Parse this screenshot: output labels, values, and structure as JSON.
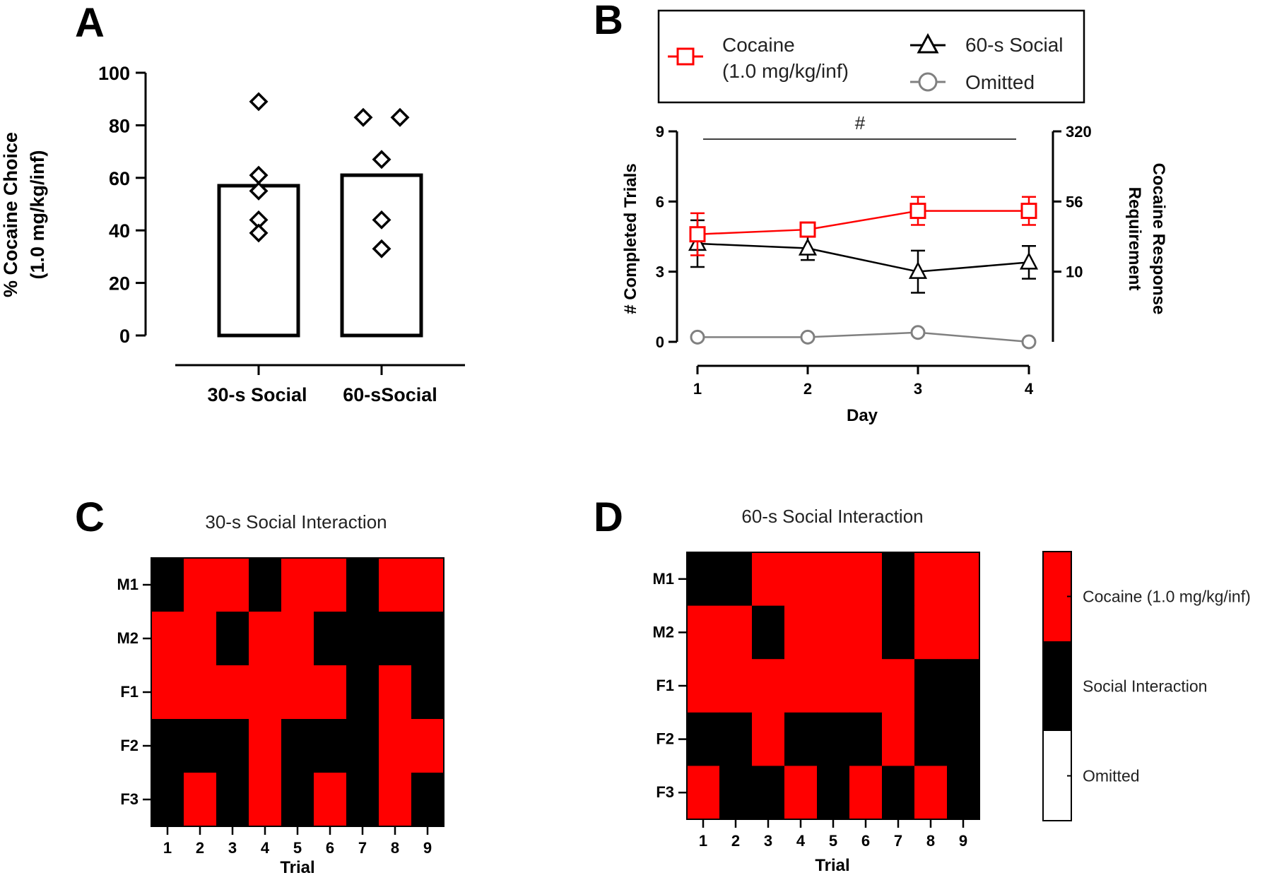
{
  "panels": {
    "a": "A",
    "b": "B",
    "c": "C",
    "d": "D"
  },
  "colors": {
    "cocaine": "#ff0000",
    "social": "#000000",
    "omitted": "#808080",
    "omitted_cell": "#ffffff"
  },
  "chart_data": [
    {
      "id": "A",
      "type": "bar",
      "categories": [
        "30-s Social",
        "60-sSocial"
      ],
      "values": [
        57,
        61
      ],
      "points": [
        [
          89,
          61,
          55,
          44,
          39
        ],
        [
          83,
          83,
          67,
          44,
          33
        ]
      ],
      "ylabel_line1": "% Cocaine Choice",
      "ylabel_line2": "(1.0 mg/kg/inf)",
      "ylim": [
        0,
        100
      ],
      "yticks": [
        0,
        20,
        40,
        60,
        80,
        100
      ]
    },
    {
      "id": "B",
      "type": "line",
      "x": [
        1,
        2,
        3,
        4
      ],
      "xticks": [
        "1",
        "2",
        "3",
        "4"
      ],
      "xlabel": "Day",
      "ylabel": "# Completed Trials",
      "ylim": [
        0,
        9
      ],
      "yticks": [
        "0",
        "3",
        "6",
        "9"
      ],
      "y2label_line1": "Cocaine Response",
      "y2label_line2": "Requirement",
      "y2ticks": [
        "10",
        "56",
        "320"
      ],
      "significance": "#",
      "series": [
        {
          "name_line1": "Cocaine",
          "name_line2": "(1.0 mg/kg/inf)",
          "values": [
            4.6,
            4.8,
            5.6,
            5.6
          ],
          "err": [
            0.9,
            0.3,
            0.6,
            0.6
          ],
          "marker": "square"
        },
        {
          "name_line1": "60-s Social",
          "name_line2": "",
          "values": [
            4.2,
            4.0,
            3.0,
            3.4
          ],
          "err": [
            1.0,
            0.5,
            0.9,
            0.7
          ],
          "marker": "triangle"
        },
        {
          "name_line1": "Omitted",
          "name_line2": "",
          "values": [
            0.2,
            0.2,
            0.4,
            0.0
          ],
          "err": [
            0,
            0,
            0,
            0
          ],
          "marker": "circle"
        }
      ]
    },
    {
      "id": "C",
      "type": "heatmap",
      "title": "30-s Social Interaction",
      "xlabel": "Trial",
      "columns": [
        "1",
        "2",
        "3",
        "4",
        "5",
        "6",
        "7",
        "8",
        "9"
      ],
      "rows": [
        "M1",
        "M2",
        "F1",
        "F2",
        "F3"
      ],
      "cells": [
        [
          "S",
          "C",
          "C",
          "S",
          "C",
          "C",
          "S",
          "C",
          "C"
        ],
        [
          "C",
          "C",
          "S",
          "C",
          "C",
          "S",
          "S",
          "S",
          "S"
        ],
        [
          "C",
          "C",
          "C",
          "C",
          "C",
          "C",
          "S",
          "C",
          "S"
        ],
        [
          "S",
          "S",
          "S",
          "C",
          "S",
          "S",
          "S",
          "C",
          "C"
        ],
        [
          "S",
          "C",
          "S",
          "C",
          "S",
          "C",
          "S",
          "C",
          "S"
        ]
      ]
    },
    {
      "id": "D",
      "type": "heatmap",
      "title": "60-s Social Interaction",
      "xlabel": "Trial",
      "columns": [
        "1",
        "2",
        "3",
        "4",
        "5",
        "6",
        "7",
        "8",
        "9"
      ],
      "rows": [
        "M1",
        "M2",
        "F1",
        "F2",
        "F3"
      ],
      "cells": [
        [
          "S",
          "S",
          "C",
          "C",
          "C",
          "C",
          "S",
          "C",
          "C"
        ],
        [
          "C",
          "C",
          "S",
          "C",
          "C",
          "C",
          "S",
          "C",
          "C"
        ],
        [
          "C",
          "C",
          "C",
          "C",
          "C",
          "C",
          "C",
          "S",
          "S"
        ],
        [
          "S",
          "S",
          "C",
          "S",
          "S",
          "S",
          "C",
          "S",
          "S"
        ],
        [
          "C",
          "S",
          "S",
          "C",
          "S",
          "C",
          "S",
          "C",
          "S"
        ]
      ],
      "colorbar": [
        "Cocaine (1.0 mg/kg/inf)",
        "Social Interaction",
        "Omitted"
      ]
    }
  ]
}
